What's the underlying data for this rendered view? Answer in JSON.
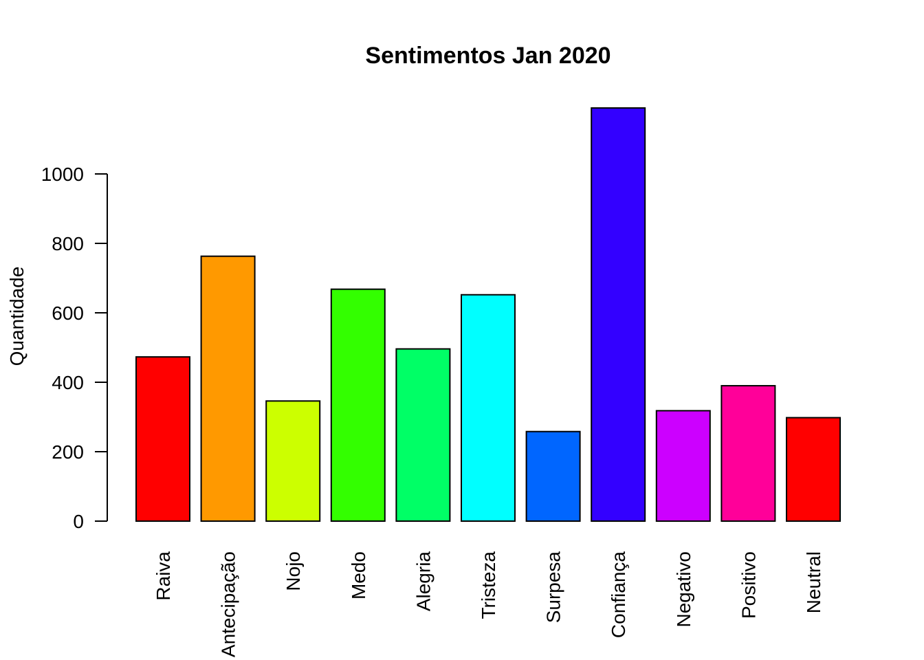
{
  "chart_data": {
    "type": "bar",
    "title": "Sentimentos Jan 2020",
    "xlabel": "",
    "ylabel": "Quantidade",
    "categories": [
      "Raiva",
      "Antecipação",
      "Nojo",
      "Medo",
      "Alegria",
      "Tristeza",
      "Surpesa",
      "Confiança",
      "Negativo",
      "Positivo",
      "Neutral"
    ],
    "values": [
      473,
      763,
      346,
      668,
      496,
      652,
      258,
      1190,
      318,
      390,
      298
    ],
    "colors": [
      "#FF0000",
      "#FF9900",
      "#CCFF00",
      "#33FF00",
      "#00FF66",
      "#00FFFF",
      "#0066FF",
      "#3300FF",
      "#CC00FF",
      "#FF0099",
      "#FF0000"
    ],
    "yticks": [
      0,
      200,
      400,
      600,
      800,
      1000
    ],
    "ylim": [
      0,
      1200
    ],
    "grid": false,
    "legend": "none"
  }
}
